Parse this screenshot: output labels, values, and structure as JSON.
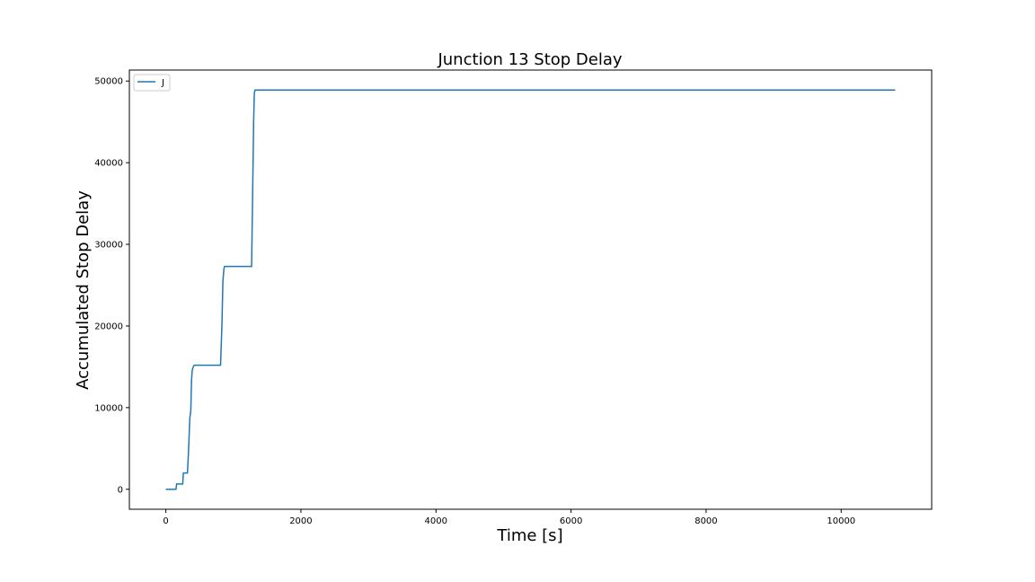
{
  "chart_data": {
    "type": "line",
    "title": "Junction 13 Stop Delay",
    "xlabel": "Time [s]",
    "ylabel": "Accumulated Stop Delay",
    "xlim": [
      -540,
      11340
    ],
    "ylim": [
      -2445,
      51345
    ],
    "xticks": [
      0,
      2000,
      4000,
      6000,
      8000,
      10000
    ],
    "yticks": [
      0,
      10000,
      20000,
      30000,
      40000,
      50000
    ],
    "xtick_labels": [
      "0",
      "2000",
      "4000",
      "6000",
      "8000",
      "10000"
    ],
    "ytick_labels": [
      "0",
      "10000",
      "20000",
      "30000",
      "40000",
      "50000"
    ],
    "grid": false,
    "legend_position": "top-left",
    "series": [
      {
        "name": "J",
        "color": "#1f77b4",
        "x": [
          0,
          150,
          160,
          250,
          260,
          320,
          335,
          355,
          370,
          380,
          390,
          405,
          420,
          440,
          810,
          830,
          845,
          860,
          870,
          1270,
          1285,
          1300,
          1310,
          1320,
          10800
        ],
        "y": [
          0,
          0,
          650,
          650,
          2000,
          2000,
          4500,
          8700,
          9700,
          13300,
          14500,
          15000,
          15200,
          15200,
          15200,
          20000,
          25500,
          27000,
          27300,
          27300,
          36000,
          45000,
          48500,
          48900,
          48900
        ]
      }
    ]
  }
}
